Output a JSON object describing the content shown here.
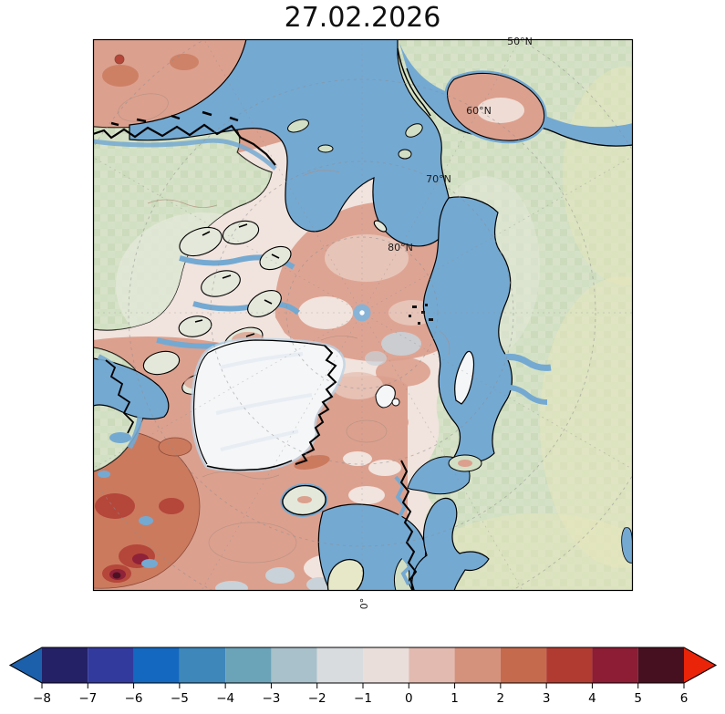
{
  "title": "27.02.2026",
  "map": {
    "latitude_labels": [
      {
        "text": "50°N"
      },
      {
        "text": "60°N"
      },
      {
        "text": "70°N"
      },
      {
        "text": "80°N"
      }
    ],
    "meridian_label": "0°",
    "pole_marker": "north-pole"
  },
  "palette": {
    "ocean": "#74a9d2",
    "land": "#d2dfc4",
    "land_pale": "#e4e8da",
    "land_yellow": "#e7e6bb",
    "ice": "#f4f6f8",
    "coast": "#000000",
    "graticule": "#8e8e8e",
    "pole_marker": "#83b4d9",
    "anom_pos_0": "#e7c4b8",
    "anom_pos_1": "#dca08e",
    "anom_pos_2": "#cb7a5e",
    "anom_pos_3": "#b5463a",
    "anom_pos_4": "#8f2138",
    "anom_pos_5": "#4c1224",
    "anom_neg_0": "#f1e3dd",
    "anom_neg_1": "#c9d2d8",
    "anom_neg_2": "#abc3cd"
  },
  "colorbar": {
    "vmin": -8,
    "vmax": 6,
    "tick_values": [
      -8,
      -7,
      -6,
      -5,
      -4,
      -3,
      -2,
      -1,
      0,
      1,
      2,
      3,
      4,
      5,
      6
    ],
    "tick_labels": [
      "−8",
      "−7",
      "−6",
      "−5",
      "−4",
      "−3",
      "−2",
      "−1",
      "0",
      "1",
      "2",
      "3",
      "4",
      "5",
      "6"
    ],
    "segments": [
      {
        "from": -8,
        "to": -7,
        "color": "#242167"
      },
      {
        "from": -7,
        "to": -6,
        "color": "#333a9e"
      },
      {
        "from": -6,
        "to": -5,
        "color": "#1568c0"
      },
      {
        "from": -5,
        "to": -4,
        "color": "#3e87bb"
      },
      {
        "from": -4,
        "to": -3,
        "color": "#6ba3b9"
      },
      {
        "from": -3,
        "to": -2,
        "color": "#a8c1ca"
      },
      {
        "from": -2,
        "to": -1,
        "color": "#d9dcde"
      },
      {
        "from": -1,
        "to": 0,
        "color": "#eadedb"
      },
      {
        "from": 0,
        "to": 1,
        "color": "#e2bab0"
      },
      {
        "from": 1,
        "to": 2,
        "color": "#d4917c"
      },
      {
        "from": 2,
        "to": 3,
        "color": "#c66a4e"
      },
      {
        "from": 3,
        "to": 4,
        "color": "#b23b31"
      },
      {
        "from": 4,
        "to": 5,
        "color": "#8c1d34"
      },
      {
        "from": 5,
        "to": 6,
        "color": "#471021"
      }
    ],
    "under_arrow_color": "#1c60ac",
    "over_arrow_color": "#ea2408"
  }
}
